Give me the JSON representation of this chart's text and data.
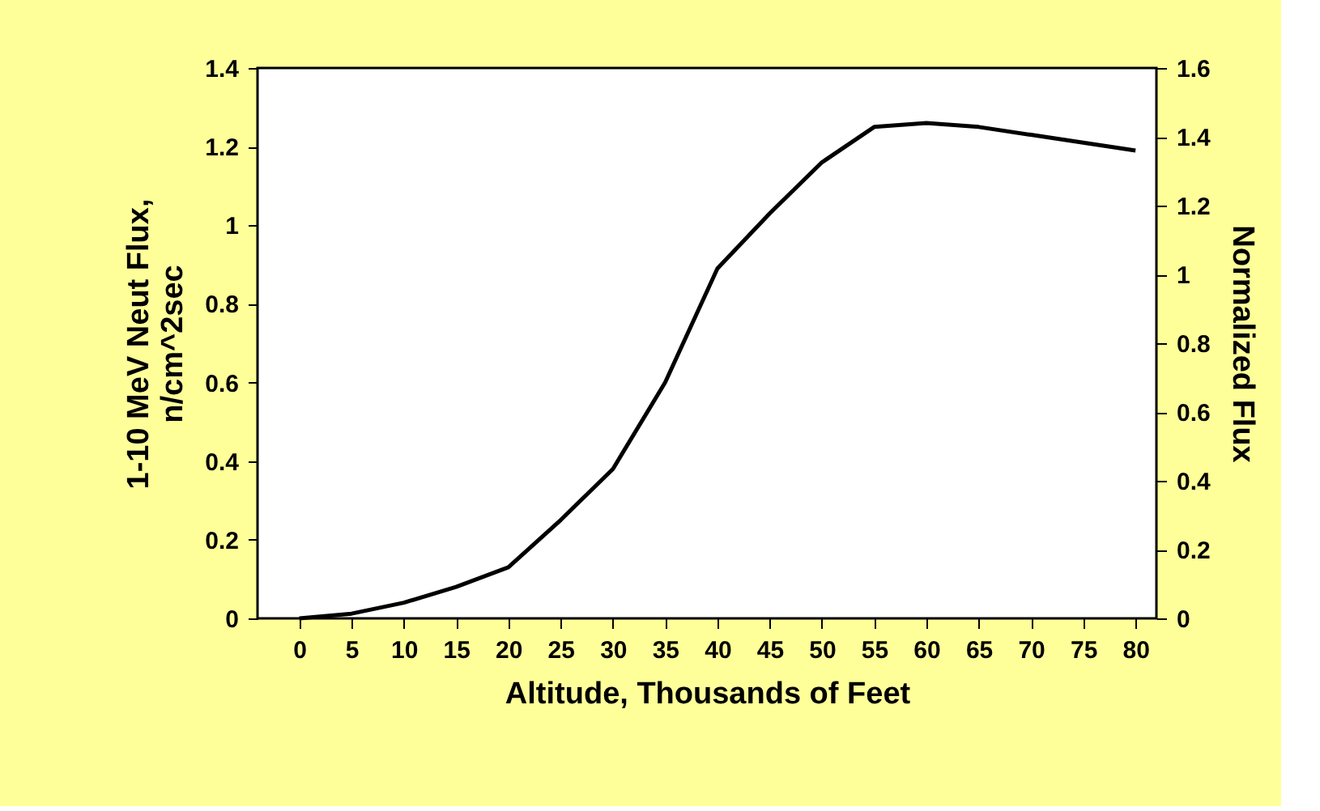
{
  "chart_data": {
    "type": "line",
    "xlabel": "Altitude, Thousands of Feet",
    "ylabel": "1-10 MeV Neut Flux,\nn/cm^2sec",
    "y2label": "Normalized Flux",
    "x": [
      0,
      5,
      10,
      15,
      20,
      25,
      30,
      35,
      40,
      45,
      50,
      55,
      60,
      65,
      70,
      75,
      80
    ],
    "series": [
      {
        "color": "#000000",
        "values": [
          0.0,
          0.012,
          0.04,
          0.08,
          0.13,
          0.25,
          0.38,
          0.6,
          0.89,
          1.03,
          1.16,
          1.25,
          1.26,
          1.25,
          1.23,
          1.21,
          1.19
        ]
      }
    ],
    "xlim": [
      -4,
      82
    ],
    "xticks": [
      0,
      5,
      10,
      15,
      20,
      25,
      30,
      35,
      40,
      45,
      50,
      55,
      60,
      65,
      70,
      75,
      80
    ],
    "ylim": [
      0,
      1.4
    ],
    "yticks": [
      0,
      0.2,
      0.4,
      0.6,
      0.8,
      1,
      1.2,
      1.4
    ],
    "y2lim": [
      0,
      1.6
    ],
    "y2ticks": [
      0,
      0.2,
      0.4,
      0.6,
      0.8,
      1,
      1.2,
      1.4,
      1.6
    ],
    "grid": false,
    "legend": false,
    "marker": "none",
    "line_style": "solid"
  }
}
